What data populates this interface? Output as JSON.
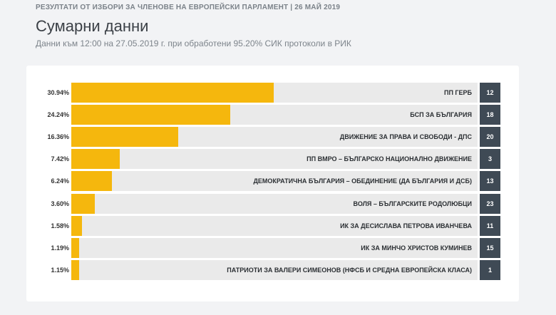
{
  "header": {
    "supertitle": "РЕЗУЛТАТИ ОТ ИЗБОРИ ЗА ЧЛЕНОВЕ НА ЕВРОПЕЙСКИ ПАРЛАМЕНТ | 26 МАЙ 2019",
    "title": "Сумарни данни",
    "subtitle": "Данни към 12:00 на 27.05.2019 г. при обработени 95.20% СИК протоколи в РИК"
  },
  "colors": {
    "bar": "#f5b70d",
    "track": "#eaeaea",
    "seat_badge": "#3f4a55"
  },
  "chart_data": {
    "type": "bar",
    "orientation": "horizontal",
    "title": "",
    "xlabel": "",
    "ylabel": "",
    "xlim": [
      0,
      62
    ],
    "grid": false,
    "legend": "none",
    "categories": [
      "ПП ГЕРБ",
      "БСП ЗА БЪЛГАРИЯ",
      "ДВИЖЕНИЕ ЗА ПРАВА И СВОБОДИ - ДПС",
      "ПП ВМРО – БЪЛГАРСКО НАЦИОНАЛНО ДВИЖЕНИЕ",
      "ДЕМОКРАТИЧНА БЪЛГАРИЯ – ОБЕДИНЕНИЕ (ДА БЪЛГАРИЯ И ДСБ)",
      "ВОЛЯ – БЪЛГАРСКИТЕ РОДОЛЮБЦИ",
      "ИК ЗА ДЕСИСЛАВА ПЕТРОВА ИВАНЧЕВА",
      "ИК ЗА МИНЧО ХРИСТОВ КУМИНЕВ",
      "ПАТРИОТИ ЗА ВАЛЕРИ СИМЕОНОВ (НФСБ И СРЕДНА ЕВРОПЕЙСКА КЛАСА)"
    ],
    "values": [
      30.94,
      24.24,
      16.36,
      7.42,
      6.24,
      3.6,
      1.58,
      1.19,
      1.15
    ],
    "value_labels": [
      "30.94%",
      "24.24%",
      "16.36%",
      "7.42%",
      "6.24%",
      "3.60%",
      "1.58%",
      "1.19%",
      "1.15%"
    ],
    "badges": [
      "12",
      "18",
      "20",
      "3",
      "13",
      "23",
      "11",
      "15",
      "1"
    ]
  }
}
